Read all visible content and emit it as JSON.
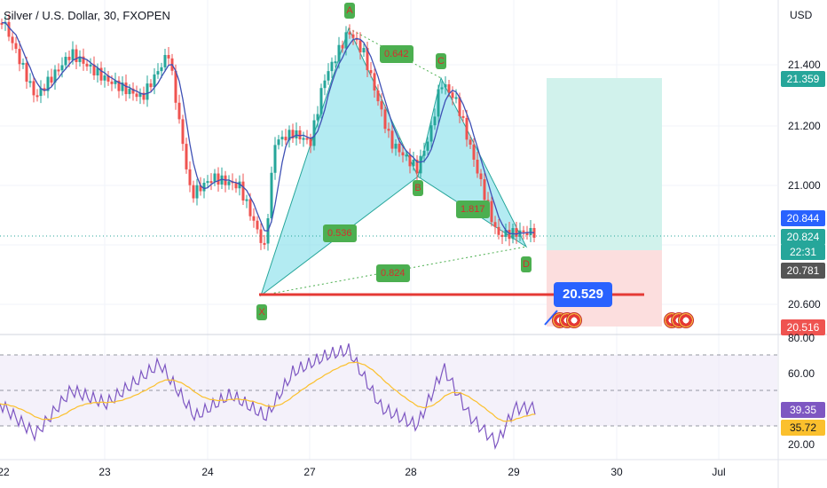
{
  "header": {
    "symbol_title": "Silver / U.S. Dollar, 30, FXOPEN",
    "currency": "USD"
  },
  "price_axis": {
    "labels": [
      "21.400",
      "21.200",
      "21.000",
      "20.600"
    ],
    "tags": {
      "target": "21.359",
      "level_a": "20.844",
      "last_price": "20.824",
      "countdown": "22:31",
      "level_b": "20.781",
      "stop": "20.516"
    }
  },
  "rsi_axis": {
    "labels": [
      "80.00",
      "60.00",
      "20.00"
    ],
    "rsi_value": "39.35",
    "rsi_ma_value": "35.72"
  },
  "time_axis": {
    "labels": [
      "22",
      "23",
      "24",
      "27",
      "28",
      "29",
      "30",
      "Jul"
    ]
  },
  "pattern": {
    "points": [
      "A",
      "B",
      "C",
      "X",
      "D"
    ],
    "ratios": [
      "0.642",
      "0.536",
      "1.8??",
      "0.824"
    ],
    "ratio_c_text": "1.817"
  },
  "callout_price": "20.529",
  "colors": {
    "up": "#26a69a",
    "down": "#ef5350",
    "pattern_fill": "#80deea",
    "pattern_line": "#26a69a",
    "profit_zone": "#d1f2ec",
    "loss_zone": "#fcdede",
    "rsi_line": "#7e57c2",
    "rsi_ma": "#fbc02d",
    "price_line": "#ef5350",
    "accent": "#2962ff"
  }
}
